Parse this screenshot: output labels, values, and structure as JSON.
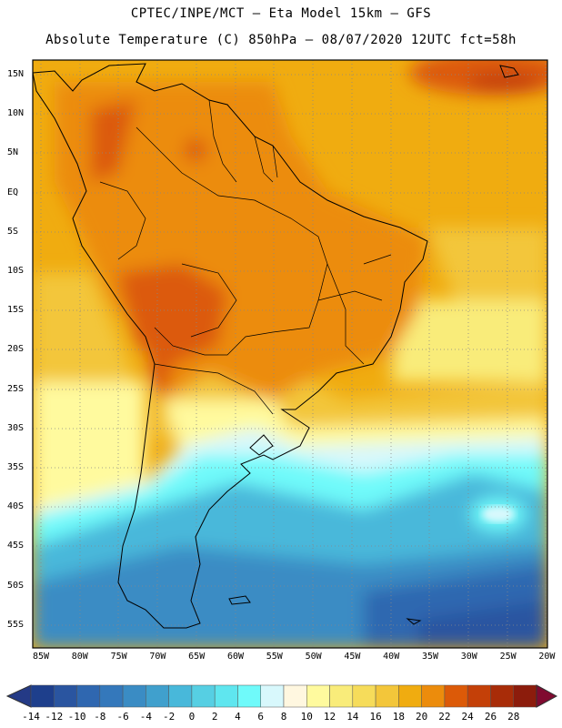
{
  "header": {
    "line1": "CPTEC/INPE/MCT –  Eta Model 15km – GFS",
    "line2": "Absolute Temperature (C) 850hPa – 08/07/2020 12UTC fct=58h"
  },
  "map": {
    "lat_labels": [
      "15N",
      "10N",
      "5N",
      "EQ",
      "5S",
      "10S",
      "15S",
      "20S",
      "25S",
      "30S",
      "35S",
      "40S",
      "45S",
      "50S",
      "55S"
    ],
    "lon_labels": [
      "85W",
      "80W",
      "75W",
      "70W",
      "65W",
      "60W",
      "55W",
      "50W",
      "45W",
      "40W",
      "35W",
      "30W",
      "25W",
      "20W"
    ],
    "lat_values": [
      15,
      10,
      5,
      0,
      -5,
      -10,
      -15,
      -20,
      -25,
      -30,
      -35,
      -40,
      -45,
      -50,
      -55
    ],
    "lon_values": [
      -85,
      -80,
      -75,
      -70,
      -65,
      -60,
      -55,
      -50,
      -45,
      -40,
      -35,
      -30,
      -25,
      -20
    ]
  },
  "colorbar": {
    "labels": [
      "-14",
      "-12",
      "-10",
      "-8",
      "-6",
      "-4",
      "-2",
      "0",
      "2",
      "4",
      "6",
      "8",
      "10",
      "12",
      "14",
      "16",
      "18",
      "20",
      "22",
      "24",
      "26",
      "28"
    ],
    "colors": [
      "#1e3f8c",
      "#2a55a0",
      "#2f67b0",
      "#3478bb",
      "#3a8cc4",
      "#40a0cd",
      "#48b8da",
      "#56cfe3",
      "#5fe6ef",
      "#6ffafa",
      "#d8f8fc",
      "#fff7e0",
      "#fffa9e",
      "#f9ec7a",
      "#f6dc5a",
      "#f3c63a",
      "#f0ac10",
      "#ec8c0c",
      "#dc5a08",
      "#c44008",
      "#a82c08",
      "#8c1c0c"
    ],
    "under_color": "#243a86",
    "over_color": "#800a30"
  }
}
